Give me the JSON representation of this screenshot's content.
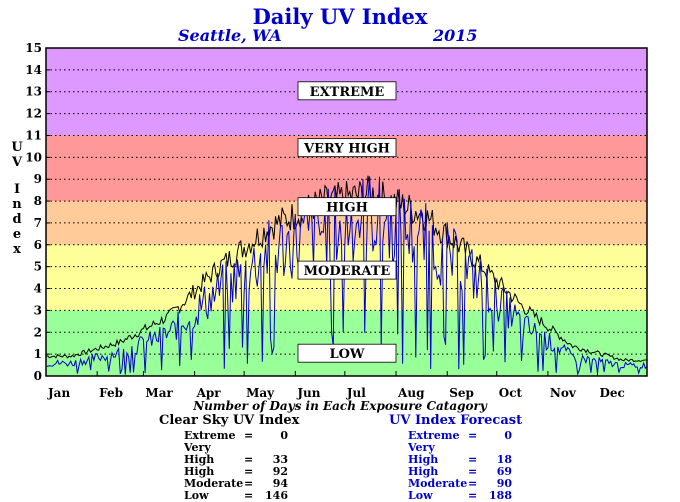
{
  "title": "Daily UV Index",
  "location": "Seattle, WA",
  "year": "2015",
  "ylabel": "UV Index",
  "footnote": "Number of Days in Each Exposure Catagory",
  "colors": {
    "extreme": "#dd99ff",
    "very_high": "#ff9999",
    "high": "#ffcc99",
    "moderate": "#ffff99",
    "low": "#99ff99",
    "clear_sky_line": "#000000",
    "forecast_line": "#0000cc"
  },
  "chart_data": {
    "type": "line",
    "title": "Daily UV Index",
    "subtitle": "Seattle, WA 2015",
    "xlabel": "",
    "ylabel": "UV Index",
    "ylim": [
      0,
      15
    ],
    "yticks": [
      0,
      1,
      2,
      3,
      4,
      5,
      6,
      7,
      8,
      9,
      10,
      11,
      12,
      13,
      14,
      15
    ],
    "grid": true,
    "x_categories": [
      "Jan",
      "Feb",
      "Mar",
      "Apr",
      "May",
      "Jun",
      "Jul",
      "Aug",
      "Sep",
      "Oct",
      "Nov",
      "Dec"
    ],
    "bands": [
      {
        "label": "LOW",
        "from": 0,
        "to": 3
      },
      {
        "label": "MODERATE",
        "from": 3,
        "to": 6
      },
      {
        "label": "HIGH",
        "from": 6,
        "to": 8
      },
      {
        "label": "VERY HIGH",
        "from": 8,
        "to": 11
      },
      {
        "label": "EXTREME",
        "from": 11,
        "to": 15
      }
    ],
    "series": [
      {
        "name": "Clear Sky UV Index",
        "monthly_peak": [
          1.0,
          1.7,
          3.0,
          5.5,
          7.5,
          8.7,
          9.2,
          8.2,
          6.0,
          3.5,
          1.5,
          0.8
        ]
      },
      {
        "name": "UV Index Forecast",
        "monthly_typical": [
          0.6,
          1.1,
          2.0,
          4.0,
          5.8,
          6.8,
          7.6,
          6.5,
          4.8,
          2.4,
          0.9,
          0.5
        ]
      }
    ]
  },
  "clear_sky": {
    "heading": "Clear Sky UV Index",
    "rows": [
      {
        "name": "Extreme",
        "eq": "=",
        "value": "0"
      },
      {
        "name": "Very High",
        "eq": "=",
        "value": "33"
      },
      {
        "name": "High",
        "eq": "=",
        "value": "92"
      },
      {
        "name": "Moderate",
        "eq": "=",
        "value": "94"
      },
      {
        "name": "Low",
        "eq": "=",
        "value": "146"
      }
    ]
  },
  "forecast": {
    "heading": "UV Index Forecast",
    "rows": [
      {
        "name": "Extreme",
        "eq": "=",
        "value": "0"
      },
      {
        "name": "Very High",
        "eq": "=",
        "value": "18"
      },
      {
        "name": "High",
        "eq": "=",
        "value": "69"
      },
      {
        "name": "Moderate",
        "eq": "=",
        "value": "90"
      },
      {
        "name": "Low",
        "eq": "=",
        "value": "188"
      }
    ]
  }
}
